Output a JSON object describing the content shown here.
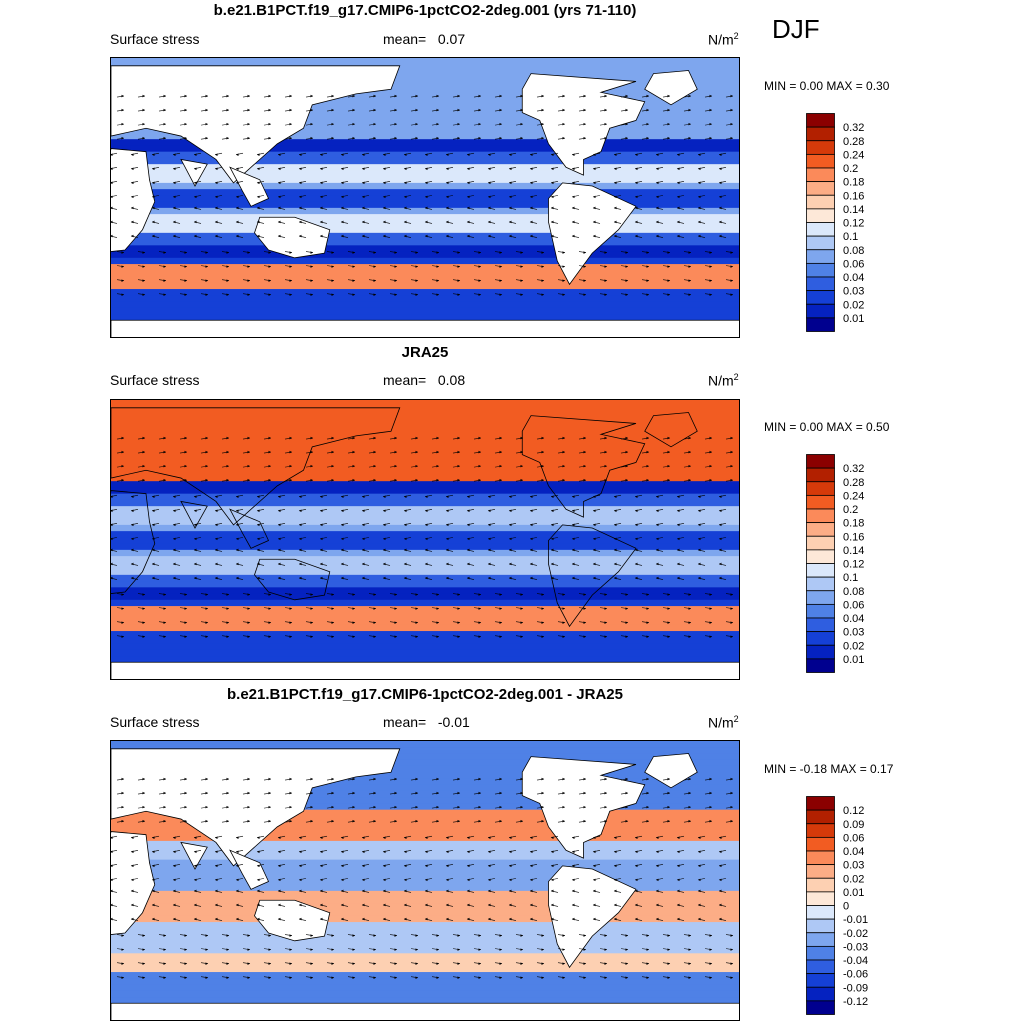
{
  "season": "DJF",
  "panels": [
    {
      "title": "b.e21.B1PCT.f19_g17.CMIP6-1pctCO2-2deg.001 (yrs 71-110)",
      "field": "Surface stress",
      "mean_label": "mean=",
      "mean": "0.07",
      "units": "N/m",
      "units_exp": "2",
      "minmax": "MIN =   0.00 MAX =   0.30",
      "levels": [
        "0.32",
        "0.28",
        "0.24",
        "0.2",
        "0.18",
        "0.16",
        "0.14",
        "0.12",
        "0.1",
        "0.08",
        "0.06",
        "0.04",
        "0.03",
        "0.02",
        "0.01"
      ],
      "colors": [
        "#8b0000",
        "#b22000",
        "#d63a0a",
        "#f25c22",
        "#fb8a5a",
        "#fcad86",
        "#fdd0b2",
        "#fde8d8",
        "#dbe8fb",
        "#aec8f5",
        "#7ea6ee",
        "#4f81e6",
        "#2f5ee0",
        "#1540d6",
        "#0522c0",
        "#00008f"
      ]
    },
    {
      "title": "JRA25",
      "field": "Surface stress",
      "mean_label": "mean=",
      "mean": "0.08",
      "units": "N/m",
      "units_exp": "2",
      "minmax": "MIN =   0.00 MAX =   0.50",
      "levels": [
        "0.32",
        "0.28",
        "0.24",
        "0.2",
        "0.18",
        "0.16",
        "0.14",
        "0.12",
        "0.1",
        "0.08",
        "0.06",
        "0.04",
        "0.03",
        "0.02",
        "0.01"
      ],
      "colors": [
        "#8b0000",
        "#b22000",
        "#d63a0a",
        "#f25c22",
        "#fb8a5a",
        "#fcad86",
        "#fdd0b2",
        "#fde8d8",
        "#dbe8fb",
        "#aec8f5",
        "#7ea6ee",
        "#4f81e6",
        "#2f5ee0",
        "#1540d6",
        "#0522c0",
        "#00008f"
      ]
    },
    {
      "title": "b.e21.B1PCT.f19_g17.CMIP6-1pctCO2-2deg.001 - JRA25",
      "field": "Surface stress",
      "mean_label": "mean=",
      "mean": "-0.01",
      "units": "N/m",
      "units_exp": "2",
      "minmax": "MIN =  -0.18 MAX =   0.17",
      "levels": [
        "0.12",
        "0.09",
        "0.06",
        "0.04",
        "0.03",
        "0.02",
        "0.01",
        "0",
        "-0.01",
        "-0.02",
        "-0.03",
        "-0.04",
        "-0.06",
        "-0.09",
        "-0.12"
      ],
      "colors": [
        "#8b0000",
        "#b22000",
        "#d63a0a",
        "#f25c22",
        "#fb8a5a",
        "#fcad86",
        "#fdd0b2",
        "#fde8d8",
        "#dbe8fb",
        "#aec8f5",
        "#7ea6ee",
        "#4f81e6",
        "#2f5ee0",
        "#1540d6",
        "#0522c0",
        "#00008f"
      ]
    }
  ],
  "chart_data": [
    {
      "type": "heatmap",
      "title": "b.e21.B1PCT.f19_g17.CMIP6-1pctCO2-2deg.001 (yrs 71-110)",
      "subtitle": "Surface stress",
      "mean": 0.07,
      "units": "N/m^2",
      "min": 0.0,
      "max": 0.3,
      "colorbar_levels": [
        0.32,
        0.28,
        0.24,
        0.2,
        0.18,
        0.16,
        0.14,
        0.12,
        0.1,
        0.08,
        0.06,
        0.04,
        0.03,
        0.02,
        0.01
      ]
    },
    {
      "type": "heatmap",
      "title": "JRA25",
      "subtitle": "Surface stress",
      "mean": 0.08,
      "units": "N/m^2",
      "min": 0.0,
      "max": 0.5,
      "colorbar_levels": [
        0.32,
        0.28,
        0.24,
        0.2,
        0.18,
        0.16,
        0.14,
        0.12,
        0.1,
        0.08,
        0.06,
        0.04,
        0.03,
        0.02,
        0.01
      ]
    },
    {
      "type": "heatmap",
      "title": "b.e21.B1PCT.f19_g17.CMIP6-1pctCO2-2deg.001 - JRA25",
      "subtitle": "Surface stress",
      "mean": -0.01,
      "units": "N/m^2",
      "min": -0.18,
      "max": 0.17,
      "colorbar_levels": [
        0.12,
        0.09,
        0.06,
        0.04,
        0.03,
        0.02,
        0.01,
        0,
        -0.01,
        -0.02,
        -0.03,
        -0.04,
        -0.06,
        -0.09,
        -0.12
      ]
    }
  ]
}
